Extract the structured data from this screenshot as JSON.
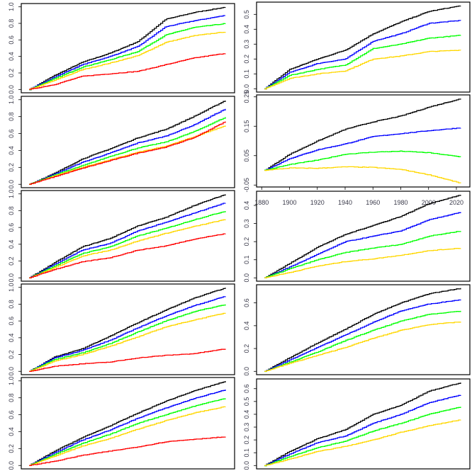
{
  "chart_data": {
    "type": "line",
    "layout": "5 rows x 2 columns of panels",
    "series_colors": {
      "black": "#000000",
      "blue": "#0000ff",
      "green": "#00ff00",
      "yellow": "#ffd700",
      "red": "#ff0000"
    },
    "x": [
      1882,
      1900,
      1920,
      1940,
      1960,
      1980,
      2000,
      2024
    ],
    "xlim": [
      1876.3,
      2029.7
    ],
    "x_tick_labels": [
      "1880",
      "1900",
      "1920",
      "1940",
      "1960",
      "1980",
      "2000",
      "2020"
    ],
    "x_ticks": [
      1880,
      1900,
      1920,
      1940,
      1960,
      1980,
      2000,
      2020
    ],
    "panels": [
      {
        "id": "L1",
        "y_ticks": [
          0,
          0.2,
          0.4,
          0.6,
          0.8,
          1.0
        ],
        "y_tick_labels": [
          "0.0",
          "0.2",
          "0.4",
          "0.6",
          "0.8",
          "1.0"
        ],
        "series": [
          {
            "name": "black",
            "values": [
              0,
              0.17,
              0.33,
              0.44,
              0.58,
              0.85,
              0.93,
              1.0
            ]
          },
          {
            "name": "blue",
            "values": [
              0,
              0.15,
              0.3,
              0.4,
              0.52,
              0.76,
              0.83,
              0.9
            ]
          },
          {
            "name": "green",
            "values": [
              0,
              0.13,
              0.27,
              0.36,
              0.46,
              0.66,
              0.75,
              0.8
            ]
          },
          {
            "name": "yellow",
            "values": [
              0,
              0.11,
              0.24,
              0.32,
              0.41,
              0.57,
              0.65,
              0.7
            ]
          },
          {
            "name": "red",
            "values": [
              0,
              0.06,
              0.16,
              0.19,
              0.22,
              0.3,
              0.38,
              0.44
            ]
          }
        ]
      },
      {
        "id": "R1",
        "y_ticks": [
          0,
          0.1,
          0.2,
          0.3,
          0.4,
          0.5
        ],
        "y_tick_labels": [
          "0.0",
          "0.1",
          "0.2",
          "0.3",
          "0.4",
          "0.5"
        ],
        "series": [
          {
            "name": "black",
            "values": [
              0,
              0.13,
              0.2,
              0.26,
              0.37,
              0.45,
              0.52,
              0.56
            ]
          },
          {
            "name": "blue",
            "values": [
              0,
              0.11,
              0.17,
              0.2,
              0.32,
              0.37,
              0.44,
              0.46
            ]
          },
          {
            "name": "green",
            "values": [
              0,
              0.09,
              0.13,
              0.16,
              0.27,
              0.3,
              0.34,
              0.36
            ]
          },
          {
            "name": "yellow",
            "values": [
              0,
              0.07,
              0.1,
              0.12,
              0.2,
              0.22,
              0.25,
              0.26
            ]
          }
        ]
      },
      {
        "id": "L2",
        "y_ticks": [
          0,
          0.2,
          0.4,
          0.6,
          0.8,
          1.0
        ],
        "y_tick_labels": [
          "0.0",
          "0.2",
          "0.4",
          "0.6",
          "0.8",
          "1.0"
        ],
        "series": [
          {
            "name": "black",
            "values": [
              0,
              0.13,
              0.3,
              0.42,
              0.55,
              0.65,
              0.8,
              1.0
            ]
          },
          {
            "name": "blue",
            "values": [
              0,
              0.12,
              0.26,
              0.37,
              0.49,
              0.57,
              0.7,
              0.9
            ]
          },
          {
            "name": "green",
            "values": [
              0,
              0.11,
              0.22,
              0.33,
              0.43,
              0.5,
              0.62,
              0.8
            ]
          },
          {
            "name": "yellow",
            "values": [
              0,
              0.1,
              0.2,
              0.29,
              0.38,
              0.45,
              0.56,
              0.7
            ]
          },
          {
            "name": "red",
            "values": [
              0,
              0.09,
              0.19,
              0.28,
              0.37,
              0.44,
              0.55,
              0.75
            ]
          }
        ]
      },
      {
        "id": "R2",
        "y_ticks": [
          -0.05,
          0.05,
          0.15,
          0.25
        ],
        "y_tick_labels": [
          "-0.05",
          "0.05",
          "0.15",
          "0.25"
        ],
        "show_x_axis": true,
        "series": [
          {
            "name": "black",
            "values": [
              0,
              0.055,
              0.1,
              0.14,
              0.165,
              0.185,
              0.215,
              0.245
            ]
          },
          {
            "name": "blue",
            "values": [
              0,
              0.04,
              0.07,
              0.09,
              0.115,
              0.125,
              0.135,
              0.145
            ]
          },
          {
            "name": "green",
            "values": [
              0,
              0.02,
              0.035,
              0.055,
              0.062,
              0.065,
              0.06,
              0.045
            ]
          },
          {
            "name": "yellow",
            "values": [
              0,
              0.008,
              0.007,
              0.012,
              0.01,
              0.003,
              -0.015,
              -0.045
            ]
          }
        ]
      },
      {
        "id": "L3",
        "y_ticks": [
          0,
          0.2,
          0.4,
          0.6,
          0.8,
          1.0
        ],
        "y_tick_labels": [
          "0.0",
          "0.2",
          "0.4",
          "0.6",
          "0.8",
          "1.0"
        ],
        "series": [
          {
            "name": "black",
            "values": [
              0,
              0.18,
              0.37,
              0.47,
              0.62,
              0.72,
              0.86,
              1.0
            ]
          },
          {
            "name": "blue",
            "values": [
              0,
              0.16,
              0.33,
              0.41,
              0.56,
              0.66,
              0.77,
              0.9
            ]
          },
          {
            "name": "green",
            "values": [
              0,
              0.14,
              0.29,
              0.37,
              0.5,
              0.59,
              0.69,
              0.8
            ]
          },
          {
            "name": "yellow",
            "values": [
              0,
              0.12,
              0.26,
              0.33,
              0.44,
              0.53,
              0.61,
              0.7
            ]
          },
          {
            "name": "red",
            "values": [
              0,
              0.1,
              0.19,
              0.24,
              0.33,
              0.38,
              0.46,
              0.53
            ]
          }
        ]
      },
      {
        "id": "R3",
        "y_ticks": [
          0,
          0.1,
          0.2,
          0.3,
          0.4
        ],
        "y_tick_labels": [
          "0.0",
          "0.1",
          "0.2",
          "0.3",
          "0.4"
        ],
        "series": [
          {
            "name": "black",
            "values": [
              0,
              0.08,
              0.17,
              0.24,
              0.29,
              0.34,
              0.41,
              0.46
            ]
          },
          {
            "name": "blue",
            "values": [
              0,
              0.06,
              0.13,
              0.2,
              0.23,
              0.26,
              0.32,
              0.365
            ]
          },
          {
            "name": "green",
            "values": [
              0,
              0.05,
              0.1,
              0.14,
              0.165,
              0.185,
              0.23,
              0.26
            ]
          },
          {
            "name": "yellow",
            "values": [
              0,
              0.03,
              0.065,
              0.09,
              0.105,
              0.125,
              0.15,
              0.165
            ]
          }
        ]
      },
      {
        "id": "L4",
        "y_ticks": [
          0,
          0.2,
          0.4,
          0.6,
          0.8,
          1.0
        ],
        "y_tick_labels": [
          "0.0",
          "0.2",
          "0.4",
          "0.6",
          "0.8",
          "1.0"
        ],
        "series": [
          {
            "name": "black",
            "values": [
              0,
              0.17,
              0.27,
              0.42,
              0.58,
              0.73,
              0.87,
              1.0
            ]
          },
          {
            "name": "blue",
            "values": [
              0,
              0.16,
              0.25,
              0.37,
              0.52,
              0.66,
              0.78,
              0.9
            ]
          },
          {
            "name": "green",
            "values": [
              0,
              0.14,
              0.22,
              0.33,
              0.47,
              0.6,
              0.71,
              0.8
            ]
          },
          {
            "name": "yellow",
            "values": [
              0,
              0.12,
              0.2,
              0.3,
              0.41,
              0.53,
              0.61,
              0.7
            ]
          },
          {
            "name": "red",
            "values": [
              0,
              0.06,
              0.09,
              0.11,
              0.16,
              0.19,
              0.21,
              0.27
            ]
          }
        ]
      },
      {
        "id": "R4",
        "y_ticks": [
          0,
          0.2,
          0.4,
          0.6
        ],
        "y_tick_labels": [
          "0.0",
          "0.2",
          "0.4",
          "0.6"
        ],
        "series": [
          {
            "name": "black",
            "values": [
              0,
              0.12,
              0.25,
              0.37,
              0.5,
              0.6,
              0.68,
              0.73
            ]
          },
          {
            "name": "blue",
            "values": [
              0,
              0.1,
              0.21,
              0.32,
              0.43,
              0.53,
              0.59,
              0.63
            ]
          },
          {
            "name": "green",
            "values": [
              0,
              0.08,
              0.17,
              0.27,
              0.36,
              0.44,
              0.5,
              0.53
            ]
          },
          {
            "name": "yellow",
            "values": [
              0,
              0.07,
              0.14,
              0.21,
              0.29,
              0.36,
              0.41,
              0.435
            ]
          }
        ]
      },
      {
        "id": "L5",
        "y_ticks": [
          0,
          0.2,
          0.4,
          0.6,
          0.8,
          1.0
        ],
        "y_tick_labels": [
          "0.0",
          "0.2",
          "0.4",
          "0.6",
          "0.8",
          "1.0"
        ],
        "series": [
          {
            "name": "black",
            "values": [
              0,
              0.17,
              0.33,
              0.47,
              0.62,
              0.76,
              0.88,
              1.0
            ]
          },
          {
            "name": "blue",
            "values": [
              0,
              0.15,
              0.3,
              0.42,
              0.56,
              0.68,
              0.79,
              0.9
            ]
          },
          {
            "name": "green",
            "values": [
              0,
              0.13,
              0.26,
              0.37,
              0.5,
              0.6,
              0.7,
              0.8
            ]
          },
          {
            "name": "yellow",
            "values": [
              0,
              0.11,
              0.23,
              0.32,
              0.43,
              0.53,
              0.62,
              0.7
            ]
          },
          {
            "name": "red",
            "values": [
              0,
              0.05,
              0.12,
              0.17,
              0.22,
              0.28,
              0.31,
              0.34
            ]
          }
        ]
      },
      {
        "id": "R5",
        "y_ticks": [
          0,
          0.1,
          0.2,
          0.3,
          0.4,
          0.5,
          0.6
        ],
        "y_tick_labels": [
          "0.0",
          "0.1",
          "0.2",
          "0.3",
          "0.4",
          "0.5",
          "0.6"
        ],
        "series": [
          {
            "name": "black",
            "values": [
              0,
              0.11,
              0.21,
              0.28,
              0.4,
              0.47,
              0.58,
              0.65
            ]
          },
          {
            "name": "blue",
            "values": [
              0,
              0.09,
              0.18,
              0.23,
              0.33,
              0.4,
              0.49,
              0.555
            ]
          },
          {
            "name": "green",
            "values": [
              0,
              0.07,
              0.14,
              0.19,
              0.27,
              0.33,
              0.4,
              0.46
            ]
          },
          {
            "name": "yellow",
            "values": [
              0,
              0.05,
              0.11,
              0.15,
              0.2,
              0.26,
              0.31,
              0.36
            ]
          }
        ]
      }
    ]
  }
}
